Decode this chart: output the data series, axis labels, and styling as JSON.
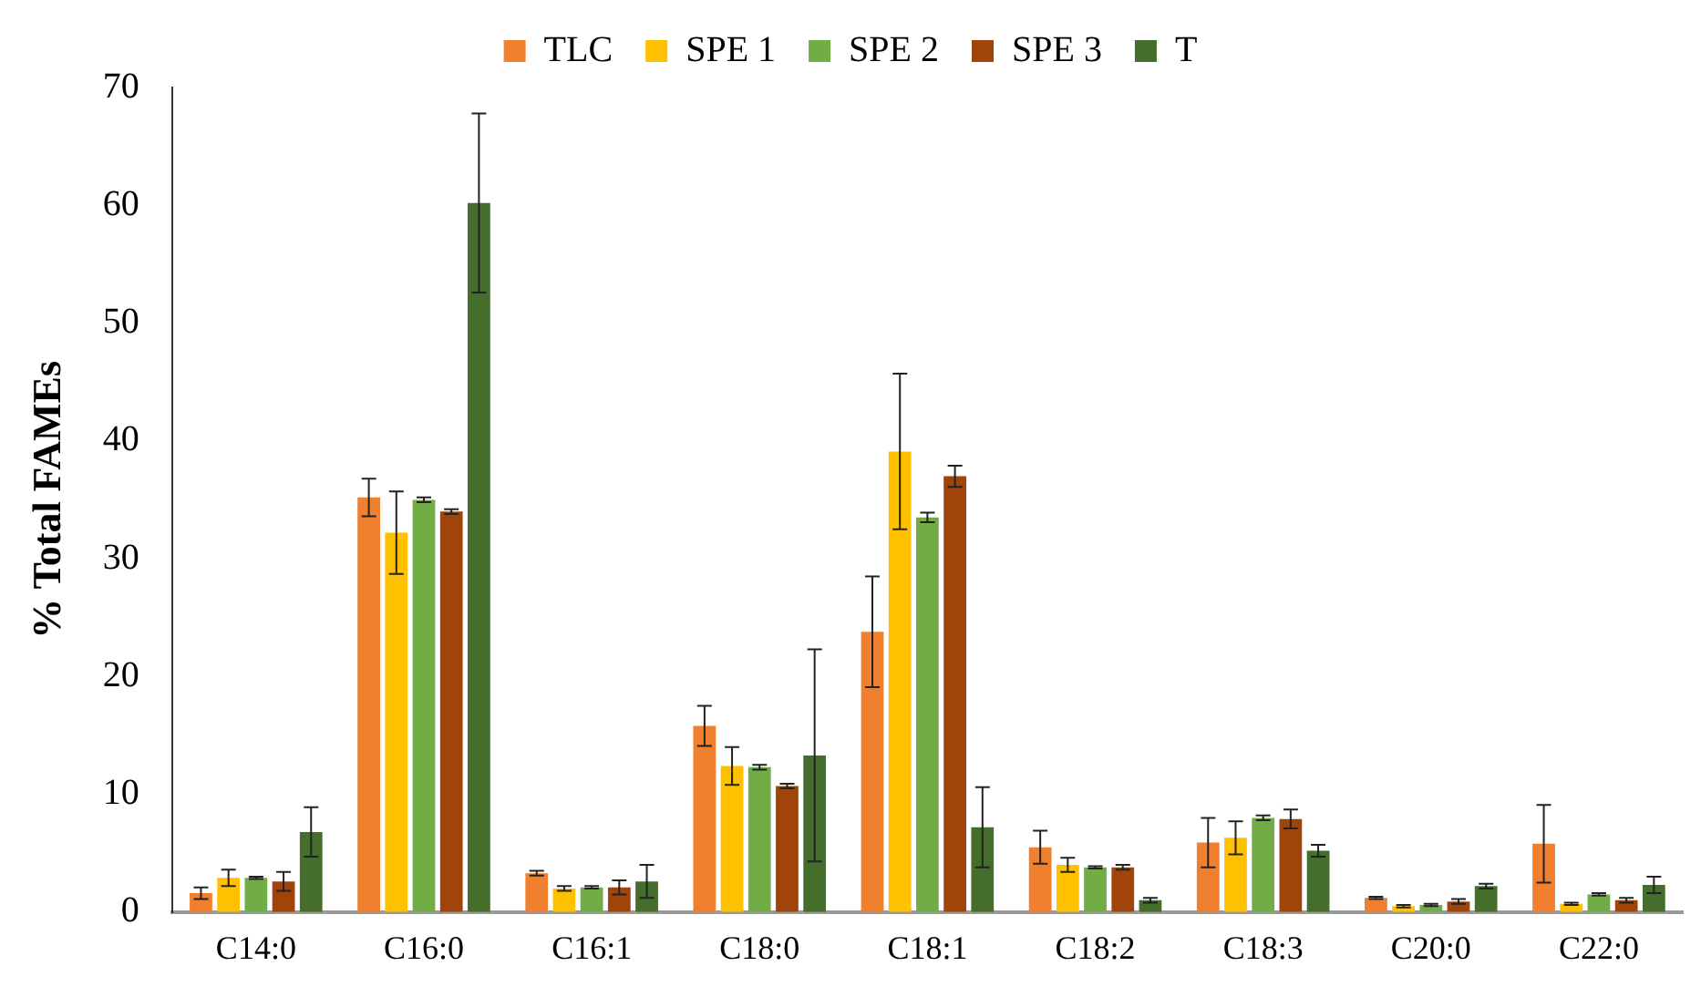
{
  "chart_data": {
    "type": "bar",
    "ylabel": "% Total FAMEs",
    "categories": [
      "C14:0",
      "C16:0",
      "C16:1",
      "C18:0",
      "C18:1",
      "C18:2",
      "C18:3",
      "C20:0",
      "C22:0"
    ],
    "ylim": [
      0,
      70
    ],
    "yticks": [
      0,
      10,
      20,
      30,
      40,
      50,
      60,
      70
    ],
    "grid": false,
    "legend": "top",
    "series": [
      {
        "name": "TLC",
        "color": "#f07f2e",
        "values": [
          1.6,
          35.2,
          3.3,
          15.8,
          23.8,
          5.5,
          5.9,
          1.2,
          5.8
        ],
        "errors": [
          0.5,
          1.6,
          0.2,
          1.7,
          4.7,
          1.4,
          2.1,
          0.1,
          3.3
        ]
      },
      {
        "name": "SPE 1",
        "color": "#ffc000",
        "values": [
          2.9,
          32.2,
          2.0,
          12.4,
          39.1,
          4.0,
          6.3,
          0.5,
          0.7
        ],
        "errors": [
          0.7,
          3.5,
          0.2,
          1.6,
          6.6,
          0.6,
          1.4,
          0.1,
          0.1
        ]
      },
      {
        "name": "SPE 2",
        "color": "#70ad47",
        "values": [
          2.9,
          35.0,
          2.1,
          12.3,
          33.5,
          3.8,
          8.0,
          0.6,
          1.5
        ],
        "errors": [
          0.1,
          0.2,
          0.1,
          0.2,
          0.4,
          0.1,
          0.2,
          0.1,
          0.1
        ]
      },
      {
        "name": "SPE 3",
        "color": "#a0440c",
        "values": [
          2.6,
          34.0,
          2.1,
          10.7,
          37.0,
          3.8,
          7.9,
          0.9,
          1.0
        ],
        "errors": [
          0.8,
          0.2,
          0.6,
          0.2,
          0.9,
          0.2,
          0.8,
          0.2,
          0.2
        ]
      },
      {
        "name": "T",
        "color": "#456d2c",
        "values": [
          6.8,
          60.2,
          2.6,
          13.3,
          7.2,
          1.0,
          5.2,
          2.2,
          2.3
        ],
        "errors": [
          2.1,
          7.6,
          1.4,
          9.0,
          3.4,
          0.2,
          0.5,
          0.2,
          0.7
        ]
      }
    ]
  }
}
